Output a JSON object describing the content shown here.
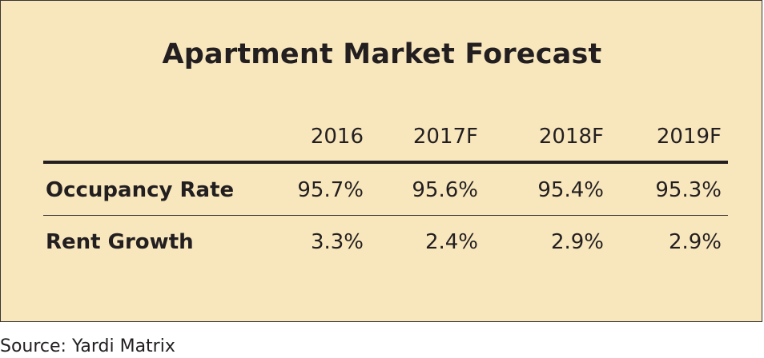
{
  "chart_data": {
    "type": "table",
    "title": "Apartment Market Forecast",
    "columns": [
      "2016",
      "2017F",
      "2018F",
      "2019F"
    ],
    "rows": [
      {
        "label": "Occupancy Rate",
        "values": [
          "95.7%",
          "95.6%",
          "95.4%",
          "95.3%"
        ]
      },
      {
        "label": "Rent Growth",
        "values": [
          "3.3%",
          "2.4%",
          "2.9%",
          "2.9%"
        ]
      }
    ]
  },
  "source": "Source: Yardi Matrix",
  "colors": {
    "panel_background": "#f8e7bd",
    "text": "#231f20",
    "rule": "#231f20"
  }
}
